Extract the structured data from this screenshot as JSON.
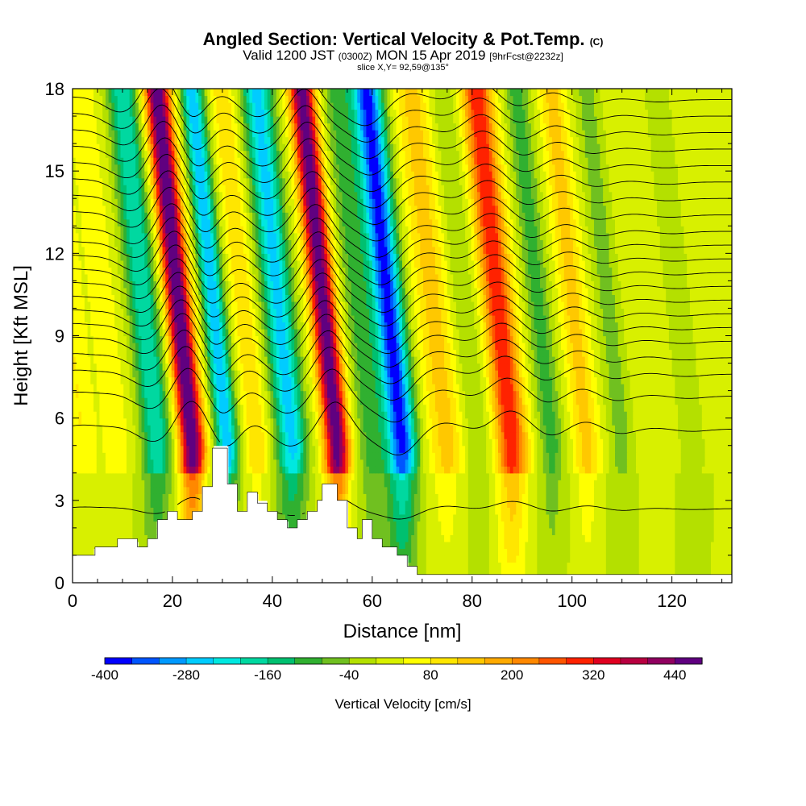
{
  "title": {
    "main": "Angled Section: Vertical Velocity & Pot.Temp.",
    "unit_tag": "(C)",
    "valid_prefix": "Valid 1200 JST",
    "valid_zulu": "(0300Z)",
    "valid_date": "MON 15 Apr 2019",
    "forecast": "[9hrFcst@2232z]",
    "slice": "slice X,Y= 92,59@135°"
  },
  "chart_data": {
    "type": "heatmap",
    "title": "Angled Section: Vertical Velocity & Pot.Temp. (C)",
    "xlabel": "Distance [nm]",
    "ylabel": "Height [Kft MSL]",
    "xlim": [
      0,
      132
    ],
    "ylim": [
      0,
      18
    ],
    "x_ticks": [
      0,
      20,
      40,
      60,
      80,
      100,
      120
    ],
    "y_ticks": [
      0,
      3,
      6,
      9,
      12,
      15,
      18
    ],
    "colorbar": {
      "label": "Vertical Velocity [cm/s]",
      "levels": [
        -400,
        -360,
        -320,
        -280,
        -240,
        -200,
        -160,
        -120,
        -80,
        -40,
        0,
        40,
        80,
        120,
        160,
        200,
        240,
        280,
        320,
        360,
        400,
        440,
        480,
        520
      ],
      "tick_labels": [
        -400,
        -280,
        -160,
        -40,
        80,
        200,
        320,
        440
      ],
      "colors": [
        "#0000ff",
        "#0055ff",
        "#0099ff",
        "#00ccff",
        "#00e8e0",
        "#00d8a0",
        "#00c070",
        "#30b030",
        "#70c020",
        "#b4e000",
        "#d8f000",
        "#ffff00",
        "#ffe600",
        "#ffc800",
        "#ffaa00",
        "#ff8800",
        "#ff5500",
        "#ff2200",
        "#e00020",
        "#b80040",
        "#900060",
        "#600080"
      ]
    },
    "vertical_velocity_bands": [
      {
        "x": 2,
        "w": 2.5,
        "amp": 60
      },
      {
        "x": 9,
        "w": 3,
        "amp": 40
      },
      {
        "x": 17,
        "w": 3,
        "amp": -220
      },
      {
        "x": 24,
        "w": 2.5,
        "amp": 480
      },
      {
        "x": 31,
        "w": 2.2,
        "amp": -300
      },
      {
        "x": 37,
        "w": 2.2,
        "amp": 100
      },
      {
        "x": 44,
        "w": 3,
        "amp": -280
      },
      {
        "x": 53,
        "w": 2.5,
        "amp": 460
      },
      {
        "x": 60,
        "w": 3,
        "amp": -120
      },
      {
        "x": 66,
        "w": 3,
        "amp": -400
      },
      {
        "x": 75,
        "w": 3.5,
        "amp": 120
      },
      {
        "x": 81,
        "w": 3,
        "amp": -60
      },
      {
        "x": 88,
        "w": 3,
        "amp": 300
      },
      {
        "x": 96,
        "w": 2.5,
        "amp": -120
      },
      {
        "x": 103,
        "w": 2.5,
        "amp": 120
      },
      {
        "x": 110,
        "w": 2.5,
        "amp": -80
      },
      {
        "x": 117,
        "w": 3,
        "amp": 20
      },
      {
        "x": 124,
        "w": 3,
        "amp": -40
      }
    ],
    "pot_temp_isentropes_kft": [
      2.7,
      5.6,
      6.8,
      7.6,
      8.2,
      8.8,
      9.3,
      9.8,
      10.3,
      10.8,
      11.3,
      11.8,
      12.3,
      12.8,
      13.4,
      14.0,
      14.6,
      15.2,
      15.8,
      16.4,
      17.0,
      17.6
    ],
    "terrain_kft": [
      [
        0,
        1.0
      ],
      [
        4.5,
        1.0
      ],
      [
        4.5,
        1.3
      ],
      [
        9,
        1.3
      ],
      [
        9,
        1.6
      ],
      [
        13,
        1.6
      ],
      [
        13,
        1.3
      ],
      [
        15,
        1.3
      ],
      [
        15,
        1.6
      ],
      [
        17,
        1.6
      ],
      [
        17,
        2.3
      ],
      [
        19,
        2.3
      ],
      [
        19,
        2.6
      ],
      [
        21,
        2.6
      ],
      [
        21,
        2.3
      ],
      [
        24,
        2.3
      ],
      [
        24,
        2.6
      ],
      [
        26,
        2.6
      ],
      [
        26,
        3.5
      ],
      [
        28,
        3.5
      ],
      [
        28,
        4.9
      ],
      [
        31,
        4.9
      ],
      [
        31,
        3.6
      ],
      [
        33,
        3.6
      ],
      [
        33,
        2.6
      ],
      [
        35,
        2.6
      ],
      [
        35,
        3.3
      ],
      [
        37,
        3.3
      ],
      [
        37,
        2.9
      ],
      [
        39,
        2.9
      ],
      [
        39,
        2.6
      ],
      [
        41,
        2.6
      ],
      [
        41,
        2.3
      ],
      [
        43,
        2.3
      ],
      [
        43,
        2.0
      ],
      [
        45,
        2.0
      ],
      [
        45,
        2.3
      ],
      [
        47,
        2.3
      ],
      [
        47,
        2.6
      ],
      [
        49,
        2.6
      ],
      [
        49,
        3.0
      ],
      [
        50,
        3.0
      ],
      [
        50,
        3.6
      ],
      [
        53,
        3.6
      ],
      [
        53,
        3.0
      ],
      [
        55,
        3.0
      ],
      [
        55,
        2.0
      ],
      [
        57,
        2.0
      ],
      [
        57,
        1.6
      ],
      [
        58,
        1.6
      ],
      [
        58,
        2.3
      ],
      [
        60,
        2.3
      ],
      [
        60,
        1.6
      ],
      [
        62,
        1.6
      ],
      [
        62,
        1.3
      ],
      [
        65,
        1.3
      ],
      [
        65,
        1.0
      ],
      [
        67,
        1.0
      ],
      [
        67,
        0.6
      ],
      [
        69,
        0.6
      ],
      [
        69,
        0.3
      ],
      [
        132,
        0.3
      ]
    ]
  }
}
